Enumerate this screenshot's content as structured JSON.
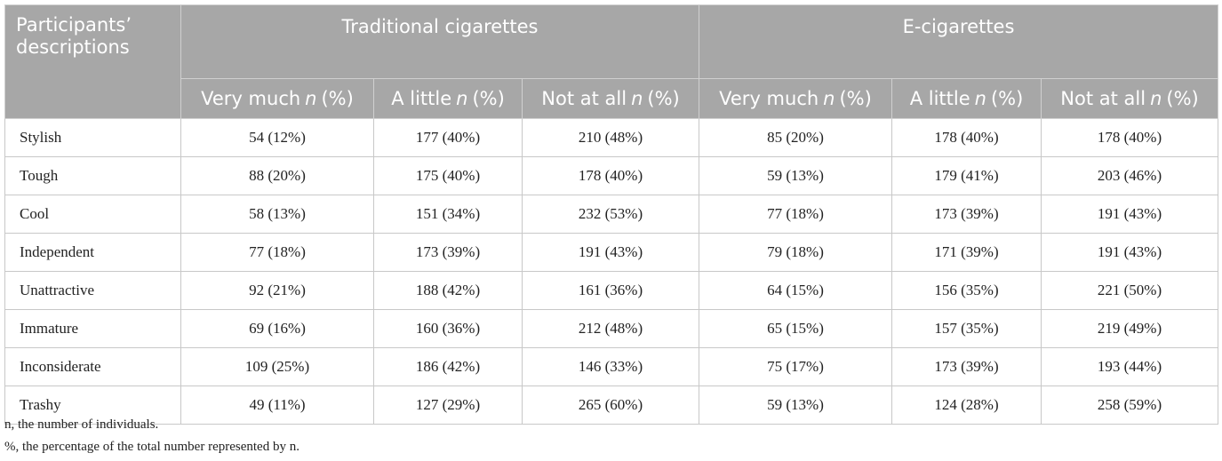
{
  "table": {
    "header": {
      "row_label": "Participants’ descriptions",
      "groups": [
        "Traditional cigarettes",
        "E-cigarettes"
      ]
    },
    "sub_headers": [
      {
        "text": "Very much",
        "var": "n",
        "unit": "(%)"
      },
      {
        "text": "A little",
        "var": "n",
        "unit": "(%)"
      },
      {
        "text": "Not at all",
        "var": "n",
        "unit": "(%)"
      },
      {
        "text": "Very much",
        "var": "n",
        "unit": "(%)"
      },
      {
        "text": "A little",
        "var": "n",
        "unit": "(%)"
      },
      {
        "text": "Not at all",
        "var": "n",
        "unit": "(%)"
      }
    ],
    "rows": [
      [
        "Stylish",
        "54 (12%)",
        "177 (40%)",
        "210 (48%)",
        "85 (20%)",
        "178 (40%)",
        "178 (40%)"
      ],
      [
        "Tough",
        "88 (20%)",
        "175 (40%)",
        "178 (40%)",
        "59 (13%)",
        "179 (41%)",
        "203 (46%)"
      ],
      [
        "Cool",
        "58 (13%)",
        "151 (34%)",
        "232 (53%)",
        "77 (18%)",
        "173 (39%)",
        "191 (43%)"
      ],
      [
        "Independent",
        "77 (18%)",
        "173 (39%)",
        "191 (43%)",
        "79 (18%)",
        "171 (39%)",
        "191 (43%)"
      ],
      [
        "Unattractive",
        "92 (21%)",
        "188 (42%)",
        "161 (36%)",
        "64 (15%)",
        "156 (35%)",
        "221 (50%)"
      ],
      [
        "Immature",
        "69 (16%)",
        "160 (36%)",
        "212 (48%)",
        "65 (15%)",
        "157 (35%)",
        "219 (49%)"
      ],
      [
        "Inconsiderate",
        "109 (25%)",
        "186 (42%)",
        "146 (33%)",
        "75 (17%)",
        "173 (39%)",
        "193 (44%)"
      ],
      [
        "Trashy",
        "49 (11%)",
        "127 (29%)",
        "265 (60%)",
        "59 (13%)",
        "124 (28%)",
        "258 (59%)"
      ]
    ]
  },
  "notes": [
    "n, the number of individuals.",
    "%, the percentage of the total number represented by n."
  ]
}
